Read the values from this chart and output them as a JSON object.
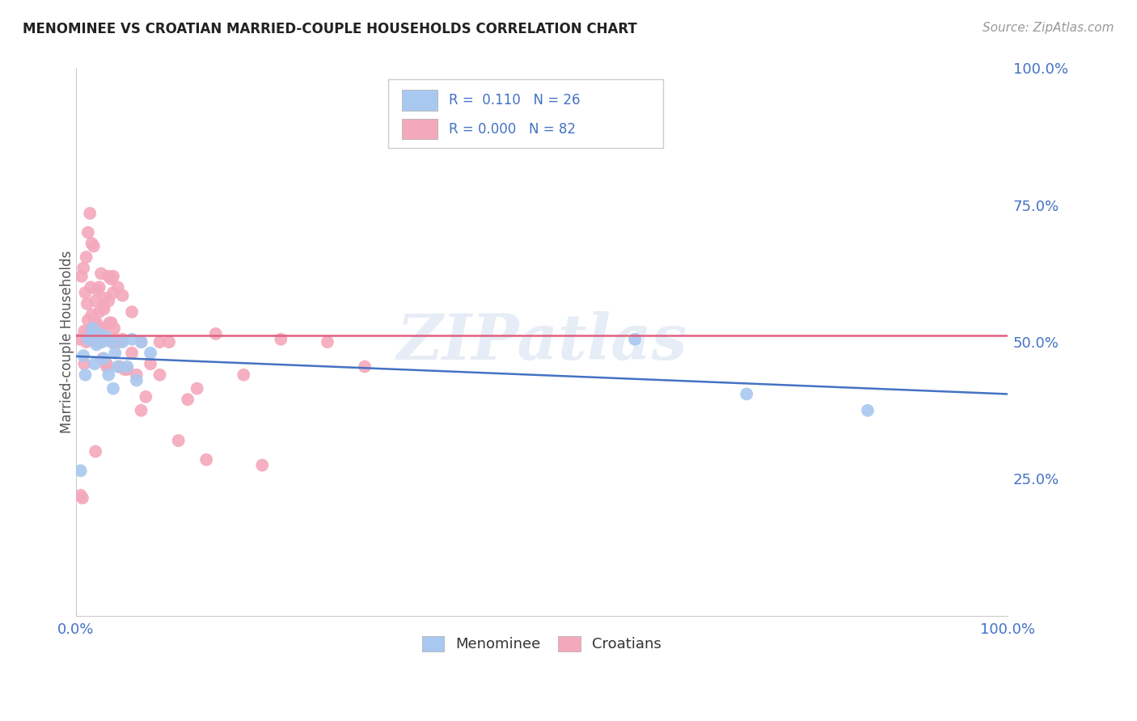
{
  "title": "MENOMINEE VS CROATIAN MARRIED-COUPLE HOUSEHOLDS CORRELATION CHART",
  "source": "Source: ZipAtlas.com",
  "ylabel": "Married-couple Households",
  "xlim": [
    0,
    1
  ],
  "ylim": [
    0,
    1
  ],
  "xticks": [
    0,
    0.25,
    0.5,
    0.75,
    1.0
  ],
  "yticks_right": [
    0.25,
    0.5,
    0.75,
    1.0
  ],
  "xticklabels": [
    "0.0%",
    "",
    "",
    "",
    "100.0%"
  ],
  "yticklabels_right": [
    "25.0%",
    "50.0%",
    "75.0%",
    "100.0%"
  ],
  "watermark": "ZIPatlas",
  "blue_color": "#A8C8F0",
  "pink_color": "#F4A8BC",
  "blue_line_color": "#4472C4",
  "pink_line_color": "#E06080",
  "menominee_x": [
    0.005,
    0.008,
    0.01,
    0.013,
    0.016,
    0.018,
    0.02,
    0.022,
    0.025,
    0.028,
    0.03,
    0.032,
    0.035,
    0.038,
    0.04,
    0.042,
    0.045,
    0.05,
    0.055,
    0.06,
    0.065,
    0.07,
    0.08,
    0.6,
    0.72,
    0.85
  ],
  "menominee_y": [
    0.265,
    0.475,
    0.44,
    0.505,
    0.51,
    0.525,
    0.46,
    0.495,
    0.515,
    0.5,
    0.47,
    0.51,
    0.44,
    0.5,
    0.415,
    0.48,
    0.455,
    0.5,
    0.455,
    0.505,
    0.43,
    0.5,
    0.48,
    0.505,
    0.405,
    0.375
  ],
  "croatian_x": [
    0.004,
    0.006,
    0.008,
    0.009,
    0.01,
    0.011,
    0.012,
    0.013,
    0.014,
    0.015,
    0.016,
    0.017,
    0.018,
    0.019,
    0.02,
    0.02,
    0.021,
    0.022,
    0.023,
    0.024,
    0.025,
    0.025,
    0.026,
    0.027,
    0.028,
    0.029,
    0.03,
    0.031,
    0.032,
    0.033,
    0.035,
    0.036,
    0.038,
    0.039,
    0.04,
    0.041,
    0.043,
    0.045,
    0.047,
    0.05,
    0.052,
    0.055,
    0.06,
    0.065,
    0.07,
    0.075,
    0.08,
    0.09,
    0.1,
    0.12,
    0.13,
    0.15,
    0.18,
    0.22,
    0.27,
    0.31,
    0.005,
    0.007,
    0.009,
    0.011,
    0.013,
    0.015,
    0.017,
    0.019,
    0.021,
    0.023,
    0.025,
    0.027,
    0.029,
    0.031,
    0.033,
    0.035,
    0.038,
    0.04,
    0.045,
    0.05,
    0.06,
    0.07,
    0.09,
    0.11,
    0.14,
    0.2
  ],
  "croatian_y": [
    0.505,
    0.62,
    0.635,
    0.52,
    0.59,
    0.5,
    0.57,
    0.54,
    0.505,
    0.52,
    0.6,
    0.55,
    0.525,
    0.505,
    0.535,
    0.51,
    0.575,
    0.535,
    0.5,
    0.515,
    0.555,
    0.5,
    0.525,
    0.505,
    0.525,
    0.47,
    0.56,
    0.505,
    0.505,
    0.46,
    0.575,
    0.535,
    0.535,
    0.5,
    0.59,
    0.525,
    0.505,
    0.5,
    0.455,
    0.505,
    0.45,
    0.45,
    0.48,
    0.44,
    0.375,
    0.4,
    0.46,
    0.44,
    0.5,
    0.395,
    0.415,
    0.515,
    0.44,
    0.505,
    0.5,
    0.455,
    0.22,
    0.215,
    0.46,
    0.655,
    0.7,
    0.735,
    0.68,
    0.675,
    0.3,
    0.595,
    0.6,
    0.625,
    0.565,
    0.58,
    0.455,
    0.62,
    0.615,
    0.62,
    0.6,
    0.585,
    0.555,
    0.5,
    0.5,
    0.32,
    0.285,
    0.275
  ],
  "background_color": "#FFFFFF",
  "grid_color": "#BBBBBB",
  "tick_color": "#4472C4"
}
